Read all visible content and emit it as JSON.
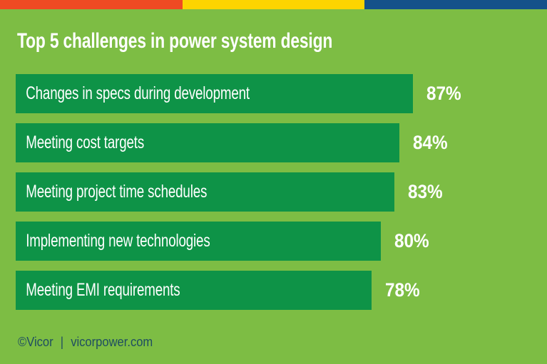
{
  "page": {
    "title": "Top 5 challenges in power system design"
  },
  "brand_stripe": {
    "segment_colors": [
      "#EF4A23",
      "#FDD400",
      "#15518A"
    ]
  },
  "colors": {
    "background": "#7DBD44",
    "bar": "#0E9347",
    "title_text": "#FFFFFF",
    "bar_label_text": "#FFFFFF",
    "percent_text": "#FFFFFF",
    "footer_text": "#1F4D61"
  },
  "chart_data": {
    "type": "bar",
    "orientation": "horizontal",
    "title": "Top 5 challenges in power system design",
    "categories": [
      "Changes in specs during development",
      "Meeting cost targets",
      "Meeting project time schedules",
      "Implementing new technologies",
      "Meeting EMI requirements"
    ],
    "values": [
      87,
      84,
      83,
      80,
      78
    ],
    "value_suffix": "%",
    "xlim": [
      0,
      100
    ],
    "legend": false,
    "gridlines": false,
    "value_label_position": "outside-right-of-bar",
    "category_label_position": "inside-bar-left"
  },
  "footer": {
    "copyright": "©Vicor",
    "separator": "|",
    "website": "vicorpower.com"
  }
}
